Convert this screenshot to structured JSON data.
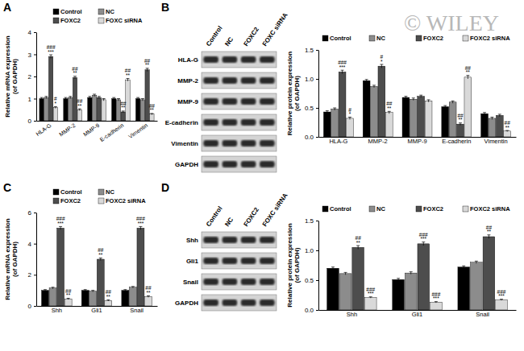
{
  "watermark": "© WILEY",
  "chart_data": [
    {
      "type": "bar",
      "title": "A",
      "y_label": [
        "Relative mRNA expression",
        "(of GAPDH)"
      ],
      "categories": [
        "HLA-G",
        "MMP-2",
        "MMP-9",
        "E-cadherin",
        "Vimentin"
      ],
      "series": [
        {
          "name": "Control",
          "color": "#000000",
          "values": [
            1.0,
            1.0,
            1.05,
            1.0,
            1.0
          ],
          "errors": [
            0.05,
            0.05,
            0.05,
            0.05,
            0.05
          ]
        },
        {
          "name": "NC",
          "color": "#8c8c8c",
          "values": [
            1.05,
            1.05,
            1.15,
            0.95,
            0.95
          ],
          "errors": [
            0.05,
            0.05,
            0.05,
            0.05,
            0.05
          ]
        },
        {
          "name": "FOXC2",
          "color": "#4d4d4d",
          "values": [
            2.9,
            1.95,
            1.05,
            0.4,
            2.3
          ],
          "errors": [
            0.08,
            0.06,
            0.05,
            0.04,
            0.07
          ]
        },
        {
          "name": "FOXC siRNA",
          "color": "#d9d9d9",
          "values": [
            0.6,
            0.5,
            0.95,
            1.85,
            0.3
          ],
          "errors": [
            0.04,
            0.04,
            0.05,
            0.06,
            0.03
          ]
        }
      ],
      "ylim": [
        0,
        4
      ],
      "yticks": [
        0,
        1,
        2,
        3,
        4
      ],
      "legend": "top",
      "annotations": [
        {
          "category": "HLA-G",
          "series": "FOXC2",
          "lines": [
            "###",
            "***"
          ]
        },
        {
          "category": "HLA-G",
          "series": "FOXC siRNA",
          "lines": [
            "#",
            "*"
          ]
        },
        {
          "category": "MMP-2",
          "series": "FOXC2",
          "lines": [
            "##",
            "**"
          ]
        },
        {
          "category": "MMP-2",
          "series": "FOXC siRNA",
          "lines": [
            "##",
            "**"
          ]
        },
        {
          "category": "E-cadherin",
          "series": "FOXC2",
          "lines": [
            "##",
            "**"
          ]
        },
        {
          "category": "E-cadherin",
          "series": "FOXC siRNA",
          "lines": [
            "##",
            "**"
          ]
        },
        {
          "category": "Vimentin",
          "series": "FOXC2",
          "lines": [
            "##",
            "**"
          ]
        },
        {
          "category": "Vimentin",
          "series": "FOXC siRNA",
          "lines": [
            "##",
            "**"
          ]
        }
      ]
    },
    {
      "type": "bar",
      "title": "B",
      "y_label": [
        "Relative protein expression",
        "(of GAPDH)"
      ],
      "categories": [
        "HLA-G",
        "MMP-2",
        "MMP-9",
        "E-cadherin",
        "Vimentin"
      ],
      "series": [
        {
          "name": "Control",
          "color": "#000000",
          "values": [
            0.43,
            0.97,
            0.68,
            0.52,
            0.4
          ],
          "errors": [
            0.02,
            0.02,
            0.02,
            0.02,
            0.02
          ]
        },
        {
          "name": "NC",
          "color": "#8c8c8c",
          "values": [
            0.48,
            0.87,
            0.65,
            0.6,
            0.32
          ],
          "errors": [
            0.02,
            0.02,
            0.02,
            0.02,
            0.02
          ]
        },
        {
          "name": "FOXC2",
          "color": "#4d4d4d",
          "values": [
            1.12,
            1.22,
            0.7,
            0.22,
            0.37
          ],
          "errors": [
            0.03,
            0.03,
            0.02,
            0.02,
            0.02
          ]
        },
        {
          "name": "FOXC2 siRNA",
          "color": "#d9d9d9",
          "values": [
            0.32,
            0.42,
            0.62,
            1.03,
            0.1
          ],
          "errors": [
            0.02,
            0.02,
            0.02,
            0.03,
            0.01
          ]
        }
      ],
      "ylim": [
        0,
        1.5
      ],
      "yticks": [
        {
          "value": 0,
          "label": "0.0"
        },
        0.5,
        {
          "value": 1,
          "label": "1.0"
        },
        1.5
      ],
      "legend": "top",
      "annotations": [
        {
          "category": "HLA-G",
          "series": "FOXC2",
          "lines": [
            "###",
            "***"
          ]
        },
        {
          "category": "HLA-G",
          "series": "FOXC2 siRNA",
          "lines": [
            "#",
            "*"
          ]
        },
        {
          "category": "MMP-2",
          "series": "FOXC2",
          "lines": [
            "#",
            "*"
          ]
        },
        {
          "category": "MMP-2",
          "series": "FOXC2 siRNA",
          "lines": [
            "##",
            "**"
          ]
        },
        {
          "category": "E-cadherin",
          "series": "FOXC2",
          "lines": [
            "##",
            "**"
          ]
        },
        {
          "category": "E-cadherin",
          "series": "FOXC2 siRNA",
          "lines": [
            "##",
            "**"
          ]
        },
        {
          "category": "Vimentin",
          "series": "FOXC2 siRNA",
          "lines": [
            "##",
            "**"
          ]
        }
      ]
    },
    {
      "type": "bar",
      "title": "C",
      "y_label": [
        "Relative mRNA expression",
        "(of GAPDH)"
      ],
      "categories": [
        "Shh",
        "Gli1",
        "Snail"
      ],
      "series": [
        {
          "name": "Control",
          "color": "#000000",
          "values": [
            1.0,
            1.0,
            1.0
          ],
          "errors": [
            0.05,
            0.05,
            0.05
          ]
        },
        {
          "name": "NC",
          "color": "#8c8c8c",
          "values": [
            1.15,
            0.95,
            1.2
          ],
          "errors": [
            0.05,
            0.05,
            0.05
          ]
        },
        {
          "name": "FOXC2",
          "color": "#4d4d4d",
          "values": [
            5.0,
            3.0,
            5.0
          ],
          "errors": [
            0.1,
            0.08,
            0.1
          ]
        },
        {
          "name": "FOXC2 siRNA",
          "color": "#d9d9d9",
          "values": [
            0.45,
            0.35,
            0.6
          ],
          "errors": [
            0.04,
            0.04,
            0.05
          ]
        }
      ],
      "ylim": [
        0,
        6
      ],
      "yticks": [
        0,
        2,
        4,
        6
      ],
      "legend": "top",
      "annotations": [
        {
          "category": "Shh",
          "series": "FOXC2",
          "lines": [
            "###",
            "***"
          ]
        },
        {
          "category": "Shh",
          "series": "FOXC2 siRNA",
          "lines": [
            "##",
            "**"
          ]
        },
        {
          "category": "Gli1",
          "series": "FOXC2",
          "lines": [
            "##",
            "**"
          ]
        },
        {
          "category": "Gli1",
          "series": "FOXC2 siRNA",
          "lines": [
            "##",
            "**"
          ]
        },
        {
          "category": "Snail",
          "series": "FOXC2",
          "lines": [
            "###",
            "***"
          ]
        },
        {
          "category": "Snail",
          "series": "FOXC2 siRNA",
          "lines": [
            "##",
            "**"
          ]
        }
      ]
    },
    {
      "type": "bar",
      "title": "D",
      "y_label": [
        "Relative protein expression",
        "(of GAPDH)"
      ],
      "categories": [
        "Shh",
        "Gli1",
        "Snail"
      ],
      "series": [
        {
          "name": "Control",
          "color": "#000000",
          "values": [
            0.7,
            0.51,
            0.72
          ],
          "errors": [
            0.02,
            0.02,
            0.02
          ]
        },
        {
          "name": "NC",
          "color": "#8c8c8c",
          "values": [
            0.61,
            0.62,
            0.8
          ],
          "errors": [
            0.02,
            0.02,
            0.02
          ]
        },
        {
          "name": "FOXC2",
          "color": "#4d4d4d",
          "values": [
            1.05,
            1.11,
            1.23
          ],
          "errors": [
            0.03,
            0.03,
            0.03
          ]
        },
        {
          "name": "FOXC2 siRNA",
          "color": "#d9d9d9",
          "values": [
            0.21,
            0.13,
            0.17
          ],
          "errors": [
            0.01,
            0.01,
            0.01
          ]
        }
      ],
      "ylim": [
        0,
        1.5
      ],
      "yticks": [
        {
          "value": 0,
          "label": "0.0"
        },
        0.5,
        {
          "value": 1,
          "label": "1.0"
        },
        1.5
      ],
      "legend": "top",
      "annotations": [
        {
          "category": "Shh",
          "series": "FOXC2",
          "lines": [
            "##",
            "**"
          ]
        },
        {
          "category": "Shh",
          "series": "FOXC2 siRNA",
          "lines": [
            "###",
            "***"
          ]
        },
        {
          "category": "Gli1",
          "series": "FOXC2",
          "lines": [
            "###",
            "***"
          ]
        },
        {
          "category": "Gli1",
          "series": "FOXC2 siRNA",
          "lines": [
            "###",
            "***"
          ]
        },
        {
          "category": "Snail",
          "series": "FOXC2",
          "lines": [
            "##",
            "**"
          ]
        },
        {
          "category": "Snail",
          "series": "FOXC2 siRNA",
          "lines": [
            "###",
            "***"
          ]
        }
      ]
    }
  ],
  "blots": [
    {
      "lanes": [
        "Control",
        "NC",
        "FOXC2",
        "FOXC siRNA"
      ],
      "rows": [
        "HLA-G",
        "MMP-2",
        "MMP-9",
        "E-cadherin",
        "Vimentin",
        "GAPDH"
      ]
    },
    {
      "lanes": [
        "Control",
        "NC",
        "FOXC2",
        "FOXC siRNA"
      ],
      "rows": [
        "Shh",
        "Gli1",
        "Snail",
        "GAPDH"
      ]
    }
  ]
}
